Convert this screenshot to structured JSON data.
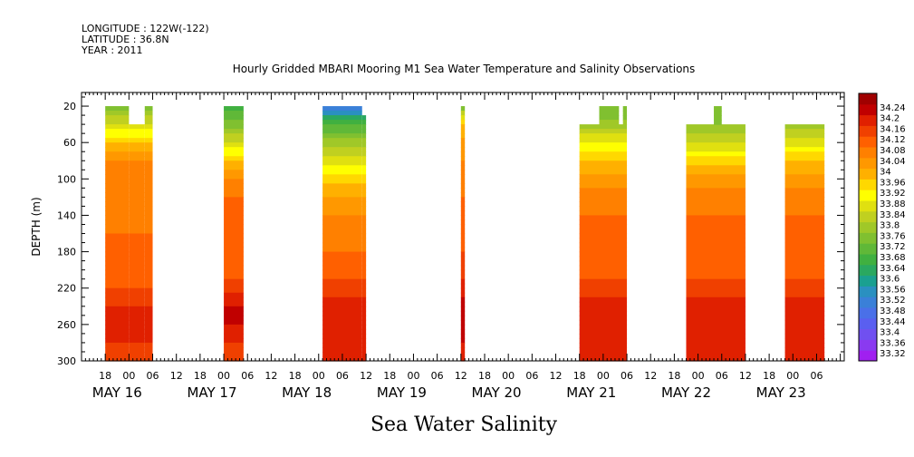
{
  "header": {
    "longitude": "LONGITUDE : 122W(-122)",
    "latitude": "LATITUDE : 36.8N",
    "year": "YEAR : 2011"
  },
  "chart_data": {
    "type": "heatmap",
    "title": "Hourly Gridded MBARI Mooring M1 Sea Water Temperature and Salinity Observations",
    "xlabel": "Sea Water Salinity",
    "ylabel": "DEPTH (m)",
    "x_unit": "hours since May 16 00:00, 2011",
    "xlim": [
      -12,
      181
    ],
    "ylim": [
      300,
      5
    ],
    "y_reversed": true,
    "grid": false,
    "y_ticks": [
      20,
      60,
      100,
      140,
      180,
      220,
      260,
      300
    ],
    "y_tick_labels": [
      "20",
      "60",
      "100",
      "140",
      "180",
      "220",
      "260",
      "300"
    ],
    "x_hour_ticks": [
      -6,
      0,
      6,
      12,
      18,
      24,
      30,
      36,
      42,
      48,
      54,
      60,
      66,
      72,
      78,
      84,
      90,
      96,
      102,
      108,
      114,
      120,
      126,
      132,
      138,
      144,
      150,
      156,
      162,
      168,
      174
    ],
    "x_hour_tick_labels": [
      "18",
      "00",
      "06",
      "12",
      "18",
      "00",
      "06",
      "12",
      "18",
      "00",
      "06",
      "12",
      "18",
      "00",
      "06",
      "12",
      "18",
      "00",
      "06",
      "12",
      "18",
      "00",
      "06",
      "12",
      "18",
      "00",
      "06",
      "12",
      "18",
      "00",
      "06"
    ],
    "x_day_labels": [
      {
        "label": "MAY 16",
        "hour": -3
      },
      {
        "label": "MAY 17",
        "hour": 21
      },
      {
        "label": "MAY 18",
        "hour": 45
      },
      {
        "label": "MAY 19",
        "hour": 69
      },
      {
        "label": "MAY 20",
        "hour": 93
      },
      {
        "label": "MAY 21",
        "hour": 117
      },
      {
        "label": "MAY 22",
        "hour": 141
      },
      {
        "label": "MAY 23",
        "hour": 165
      }
    ],
    "colorbar": {
      "levels": [
        33.32,
        33.36,
        33.4,
        33.44,
        33.48,
        33.52,
        33.56,
        33.6,
        33.64,
        33.68,
        33.72,
        33.76,
        33.8,
        33.84,
        33.88,
        33.92,
        33.96,
        34,
        34.04,
        34.08,
        34.12,
        34.16,
        34.2,
        34.24
      ],
      "labels": [
        "33.32",
        "33.36",
        "33.4",
        "33.44",
        "33.48",
        "33.52",
        "33.56",
        "33.6",
        "33.64",
        "33.68",
        "33.72",
        "33.76",
        "33.8",
        "33.84",
        "33.88",
        "33.92",
        "33.96",
        "34",
        "34.04",
        "34.08",
        "34.12",
        "34.16",
        "34.2",
        "34.24"
      ],
      "colors": [
        "#a020f0",
        "#8a3af0",
        "#7050f0",
        "#5a5ff0",
        "#4a70e8",
        "#3a80d8",
        "#2a90c0",
        "#1aa090",
        "#2aa860",
        "#40b040",
        "#60b838",
        "#80c030",
        "#a0c828",
        "#c0d020",
        "#e0e010",
        "#ffff00",
        "#ffd800",
        "#ffb000",
        "#ff9800",
        "#ff8000",
        "#ff6000",
        "#f04000",
        "#e02000",
        "#c00000",
        "#a00000"
      ]
    },
    "depth_profile_depths": [
      20,
      40,
      60,
      80,
      100,
      120,
      140,
      160,
      180,
      200,
      220,
      240,
      260,
      280,
      300
    ],
    "segments": [
      {
        "start_hour": -6,
        "end_hour": 6,
        "top_depth": 20,
        "notch": {
          "start_hour": 0,
          "end_hour": 4,
          "top_depth": 40
        },
        "profile": [
          33.74,
          33.84,
          33.96,
          34.04,
          34.06,
          34.08,
          34.06,
          34.08,
          34.08,
          34.08,
          34.12,
          34.16,
          34.18,
          34.16,
          34.14
        ]
      },
      {
        "start_hour": 24,
        "end_hour": 29,
        "top_depth": 20,
        "profile": [
          33.66,
          33.74,
          33.84,
          33.96,
          34.04,
          34.08,
          34.08,
          34.08,
          34.08,
          34.1,
          34.14,
          34.2,
          34.2,
          34.16,
          34.14
        ]
      },
      {
        "start_hour": 49,
        "end_hour": 59,
        "top_depth": 20,
        "notch": {
          "start_hour": 59,
          "end_hour": 60,
          "top_depth": 30
        },
        "profile": [
          33.48,
          33.68,
          33.78,
          33.86,
          33.94,
          34.0,
          34.04,
          34.06,
          34.08,
          34.1,
          34.14,
          34.18,
          34.2,
          34.18,
          34.16
        ]
      },
      {
        "start_hour": 84,
        "end_hour": 85,
        "top_depth": 20,
        "profile": [
          33.72,
          33.96,
          34.02,
          34.04,
          34.06,
          34.08,
          34.1,
          34.1,
          34.12,
          34.14,
          34.18,
          34.22,
          34.22,
          34.2,
          34.18
        ]
      },
      {
        "start_hour": 114,
        "end_hour": 126,
        "top_depth": 40,
        "bumps": [
          {
            "start_hour": 119,
            "end_hour": 124,
            "top_depth": 20
          },
          {
            "start_hour": 125,
            "end_hour": 126,
            "top_depth": 20
          }
        ],
        "profile": [
          33.72,
          33.78,
          33.88,
          33.96,
          34.02,
          34.06,
          34.08,
          34.08,
          34.08,
          34.1,
          34.14,
          34.18,
          34.2,
          34.18,
          34.16
        ]
      },
      {
        "start_hour": 141,
        "end_hour": 156,
        "top_depth": 40,
        "bumps": [
          {
            "start_hour": 148,
            "end_hour": 150,
            "top_depth": 20
          }
        ],
        "profile": [
          33.72,
          33.76,
          33.84,
          33.94,
          34.02,
          34.06,
          34.08,
          34.08,
          34.08,
          34.1,
          34.14,
          34.18,
          34.2,
          34.18,
          34.16
        ]
      },
      {
        "start_hour": 166,
        "end_hour": 176,
        "top_depth": 40,
        "profile": [
          33.72,
          33.78,
          33.86,
          33.96,
          34.02,
          34.06,
          34.08,
          34.08,
          34.08,
          34.1,
          34.14,
          34.18,
          34.2,
          34.18,
          34.16
        ]
      }
    ]
  }
}
